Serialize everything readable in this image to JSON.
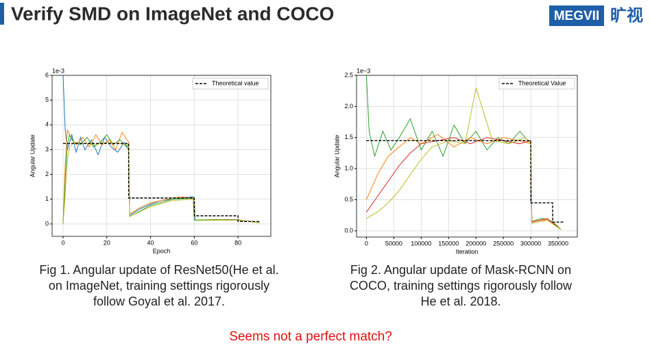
{
  "header": {
    "title": "Verify SMD on ImageNet and COCO",
    "logo": "MEGVII",
    "logo_cn": "旷视"
  },
  "captions": [
    [
      "Fig 1. Angular update of ResNet50(He et al.",
      "on ImageNet, training settings rigorously",
      "follow Goyal et al. 2017."
    ],
    [
      "Fig 2. Angular update of Mask-RCNN on",
      "COCO, training settings rigorously follow",
      "He et al. 2018."
    ]
  ],
  "footer": "Seems not a perfect match?",
  "chart_data": [
    {
      "type": "line",
      "xlabel": "Epoch",
      "ylabel": "Angular Update",
      "y_offset_label": "1e-3",
      "xlim": [
        -5,
        95
      ],
      "ylim": [
        -0.5,
        6
      ],
      "xticks": [
        0,
        20,
        40,
        60,
        80
      ],
      "yticks": [
        0,
        1,
        2,
        3,
        4,
        5,
        6
      ],
      "grid": true,
      "legend": "upper right",
      "series": [
        {
          "color": "#1f77b4",
          "x": [
            0,
            1,
            2,
            4,
            6,
            8,
            10,
            13,
            16,
            19,
            22,
            25,
            28,
            30,
            30.5,
            35,
            40,
            45,
            50,
            55,
            59.5,
            60,
            65,
            70,
            75,
            80,
            85,
            90
          ],
          "values": [
            6,
            3.8,
            3.0,
            3.6,
            2.9,
            3.5,
            3.0,
            3.4,
            2.8,
            3.5,
            3.1,
            2.9,
            3.3,
            3.0,
            0.35,
            0.6,
            0.8,
            0.95,
            1.0,
            1.05,
            1.1,
            0.15,
            0.16,
            0.17,
            0.18,
            0.17,
            0.1,
            0.05
          ]
        },
        {
          "color": "#ff7f0e",
          "x": [
            0,
            1,
            2,
            4,
            6,
            9,
            12,
            15,
            18,
            21,
            24,
            27,
            30,
            30.5,
            35,
            40,
            45,
            50,
            55,
            60,
            60.5,
            70,
            80,
            90
          ],
          "values": [
            0,
            2.4,
            3.8,
            3.4,
            3.2,
            3.5,
            3.1,
            3.6,
            3.2,
            3.4,
            3.0,
            3.7,
            3.3,
            0.4,
            0.65,
            0.85,
            0.95,
            1.05,
            1.1,
            1.0,
            0.15,
            0.18,
            0.16,
            0.05
          ]
        },
        {
          "color": "#2ca02c",
          "x": [
            0,
            1,
            2,
            3,
            5,
            8,
            11,
            14,
            17,
            20,
            23,
            26,
            29,
            30,
            30.5,
            40,
            50,
            60,
            60.5,
            70,
            80,
            90
          ],
          "values": [
            0,
            1.8,
            3.2,
            3.6,
            3.3,
            3.2,
            3.5,
            3.1,
            3.3,
            3.6,
            3.2,
            3.4,
            3.1,
            3.2,
            0.3,
            0.75,
            1.0,
            1.05,
            0.16,
            0.17,
            0.15,
            0.05
          ]
        },
        {
          "color": "#bcbd22",
          "x": [
            0,
            1,
            2,
            3,
            5,
            10,
            15,
            20,
            25,
            30,
            30.5,
            40,
            50,
            60,
            60.5,
            70,
            80,
            90
          ],
          "values": [
            0,
            1.2,
            2.6,
            3.1,
            3.3,
            3.25,
            3.2,
            3.3,
            3.25,
            3.2,
            0.3,
            0.7,
            0.95,
            1.0,
            0.14,
            0.15,
            0.15,
            0.05
          ]
        },
        {
          "name": "Theoretical value",
          "color": "#000000",
          "dashed": true,
          "x": [
            0,
            30,
            30,
            60,
            60,
            80,
            80,
            90
          ],
          "values": [
            3.25,
            3.25,
            1.05,
            1.05,
            0.33,
            0.33,
            0.1,
            0.1
          ]
        }
      ]
    },
    {
      "type": "line",
      "xlabel": "Iteration",
      "ylabel": "Angular Update",
      "y_offset_label": "1e−3",
      "xlim": [
        -18000,
        385000
      ],
      "ylim": [
        -0.1,
        2.5
      ],
      "xticks": [
        0,
        50000,
        100000,
        150000,
        200000,
        250000,
        300000,
        350000
      ],
      "yticks": [
        {
          "value": 0,
          "label": "0.0"
        },
        0.5,
        {
          "value": 1,
          "label": "1.0"
        },
        1.5,
        {
          "value": 2,
          "label": "2.0"
        },
        2.5
      ],
      "grid": true,
      "legend": "upper right",
      "series": [
        {
          "color": "#2ca02c",
          "x": [
            0,
            5000,
            15000,
            30000,
            45000,
            60000,
            80000,
            100000,
            120000,
            140000,
            160000,
            180000,
            200000,
            220000,
            240000,
            260000,
            280000,
            300000,
            302000,
            320000,
            340000,
            355000
          ],
          "values": [
            2.5,
            1.6,
            1.2,
            1.6,
            1.3,
            1.5,
            1.8,
            1.3,
            1.6,
            1.2,
            1.7,
            1.4,
            1.6,
            1.3,
            1.5,
            1.4,
            1.6,
            1.4,
            0.15,
            0.2,
            0.15,
            0.02
          ]
        },
        {
          "color": "#ff7f0e",
          "x": [
            0,
            20000,
            40000,
            60000,
            80000,
            100000,
            130000,
            160000,
            190000,
            220000,
            250000,
            280000,
            300000,
            302000,
            330000,
            355000
          ],
          "values": [
            0.5,
            0.9,
            1.2,
            1.35,
            1.5,
            1.4,
            1.55,
            1.35,
            1.5,
            1.4,
            1.5,
            1.45,
            1.4,
            0.15,
            0.18,
            0.02
          ]
        },
        {
          "color": "#d62728",
          "x": [
            0,
            20000,
            40000,
            60000,
            80000,
            100000,
            130000,
            160000,
            190000,
            220000,
            250000,
            280000,
            300000,
            302000,
            330000,
            355000
          ],
          "values": [
            0.3,
            0.55,
            0.8,
            1.05,
            1.25,
            1.4,
            1.45,
            1.5,
            1.4,
            1.5,
            1.45,
            1.4,
            1.45,
            0.14,
            0.2,
            0.02
          ]
        },
        {
          "color": "#bcbd22",
          "x": [
            0,
            20000,
            40000,
            60000,
            80000,
            100000,
            120000,
            150000,
            180000,
            200000,
            230000,
            260000,
            290000,
            300000,
            302000,
            330000,
            355000
          ],
          "values": [
            0.2,
            0.3,
            0.45,
            0.65,
            0.9,
            1.15,
            1.35,
            1.45,
            1.4,
            2.3,
            1.45,
            1.4,
            1.5,
            1.4,
            0.12,
            0.17,
            0.02
          ]
        },
        {
          "name": "Theoretical Value",
          "color": "#000000",
          "dashed": true,
          "x": [
            0,
            300000,
            300000,
            340000,
            340000,
            360000
          ],
          "values": [
            1.45,
            1.45,
            0.45,
            0.45,
            0.14,
            0.14
          ]
        }
      ]
    }
  ]
}
